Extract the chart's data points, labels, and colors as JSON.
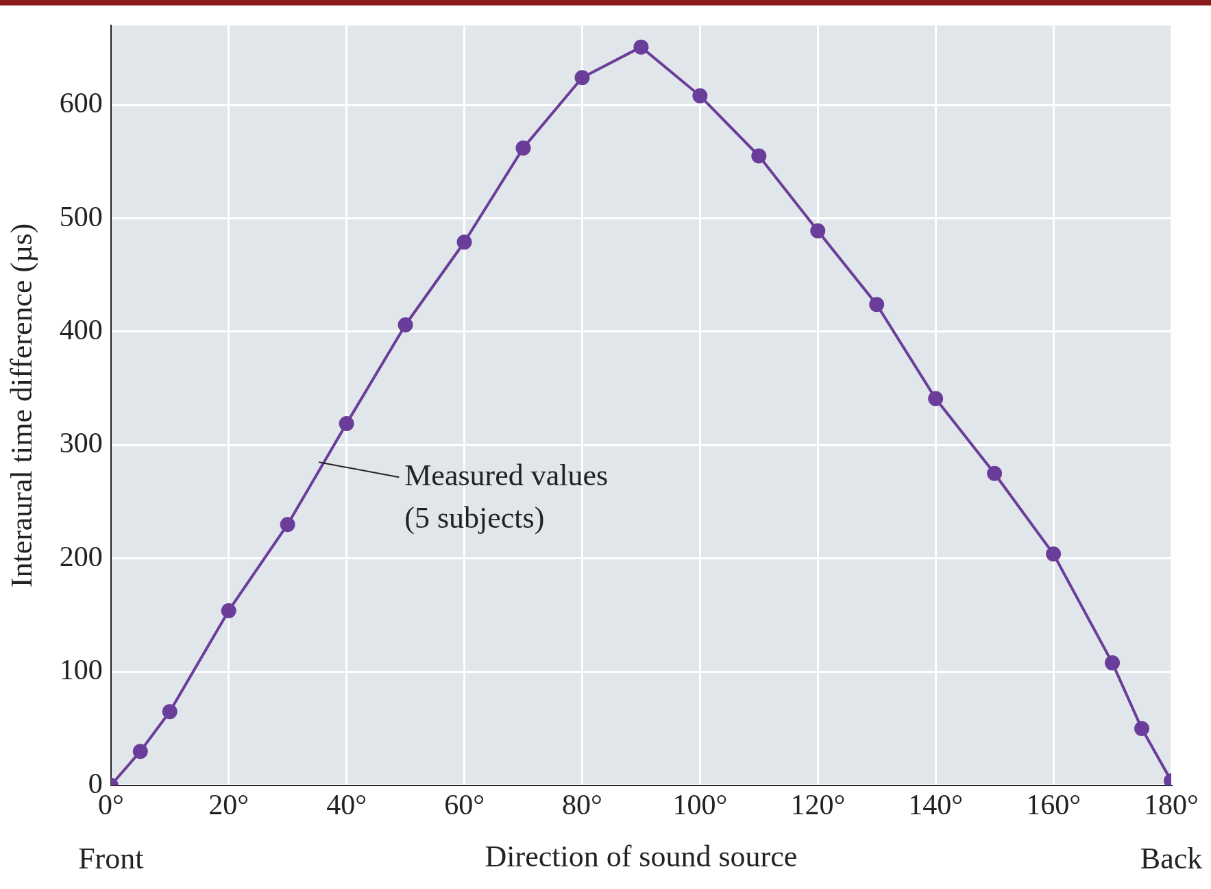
{
  "chart_data": {
    "type": "line",
    "xlabel": "Direction of sound source",
    "ylabel": "Interaural time difference (µs)",
    "x": [
      0,
      5,
      10,
      20,
      30,
      40,
      50,
      60,
      70,
      80,
      90,
      100,
      110,
      120,
      130,
      140,
      150,
      160,
      170,
      175,
      180
    ],
    "series": [
      {
        "color": "#6a3d9a",
        "values": [
          0,
          30,
          65,
          154,
          230,
          319,
          406,
          479,
          562,
          624,
          651,
          608,
          555,
          489,
          424,
          341,
          275,
          204,
          108,
          50,
          4
        ]
      }
    ],
    "xlim": [
      0,
      180
    ],
    "xticks": [
      {
        "value": 0,
        "label": "0°"
      },
      {
        "value": 20,
        "label": "20°"
      },
      {
        "value": 40,
        "label": "40°"
      },
      {
        "value": 60,
        "label": "60°"
      },
      {
        "value": 80,
        "label": "80°"
      },
      {
        "value": 100,
        "label": "100°"
      },
      {
        "value": 120,
        "label": "120°"
      },
      {
        "value": 140,
        "label": "140°"
      },
      {
        "value": 160,
        "label": "160°"
      },
      {
        "value": 180,
        "label": "180°"
      }
    ],
    "ylim": [
      0,
      670
    ],
    "yticks": [
      0,
      100,
      200,
      300,
      400,
      500,
      600
    ],
    "grid": true,
    "legend": false,
    "marker": "circle",
    "line_style": "solid",
    "annotations": [
      {
        "text": "Measured values\n(5 subjects)",
        "x": 35.3,
        "y": 285
      },
      "Front",
      "Back"
    ]
  }
}
